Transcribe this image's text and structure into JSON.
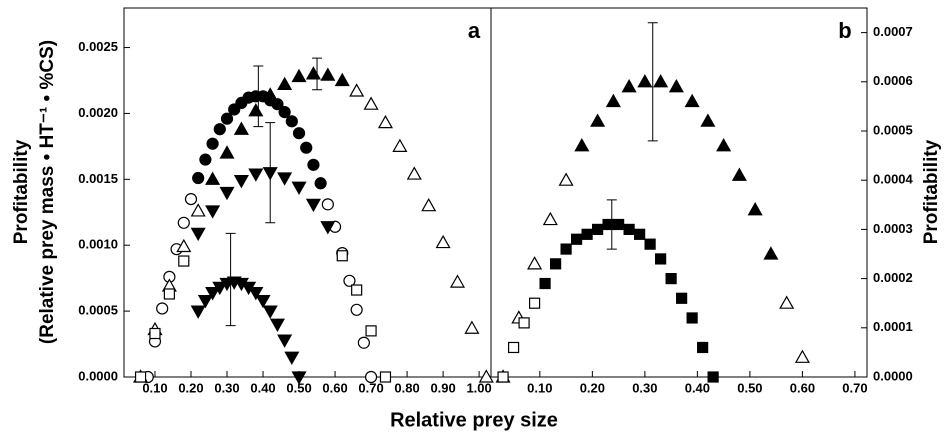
{
  "chart_data": [
    {
      "type": "scatter",
      "panel_label": "a",
      "ylabel": "Profitability",
      "ylabel_sub": "(Relative prey mass • HT⁻¹ • %CS)",
      "xlabel": "Relative prey size",
      "xlim": [
        0.014,
        1.033
      ],
      "ylim": [
        0,
        0.0028
      ],
      "y_side": "left",
      "xticks": [
        {
          "value": 0.1,
          "label": "0.10"
        },
        {
          "value": 0.2,
          "label": "0.20"
        },
        {
          "value": 0.3,
          "label": "0.30"
        },
        {
          "value": 0.4,
          "label": "0.40"
        },
        {
          "value": 0.5,
          "label": "0.50"
        },
        {
          "value": 0.6,
          "label": "0.60"
        },
        {
          "value": 0.7,
          "label": "0.70"
        },
        {
          "value": 0.8,
          "label": "0.80"
        },
        {
          "value": 0.9,
          "label": "0.90"
        },
        {
          "value": 1,
          "label": "1.00"
        }
      ],
      "yticks": [
        {
          "value": 0,
          "label": "0.0000"
        },
        {
          "value": 0.0005,
          "label": "0.0005"
        },
        {
          "value": 0.001,
          "label": "0.0010"
        },
        {
          "value": 0.0015,
          "label": "0.0015"
        },
        {
          "value": 0.002,
          "label": "0.0020"
        },
        {
          "value": 0.0025,
          "label": "0.0025"
        }
      ],
      "series": [
        {
          "marker": "circle",
          "filled": false,
          "color": "#000000",
          "x": [
            0.08,
            0.1,
            0.12,
            0.14,
            0.16,
            0.18,
            0.2
          ],
          "values": [
            0,
            0.00027,
            0.00052,
            0.00076,
            0.00097,
            0.00117,
            0.00135
          ]
        },
        {
          "marker": "circle",
          "filled": false,
          "color": "#000000",
          "x": [
            0.58,
            0.6,
            0.62,
            0.64,
            0.66,
            0.68,
            0.7
          ],
          "values": [
            0.00131,
            0.00114,
            0.00094,
            0.00073,
            0.00051,
            0.00026,
            0
          ]
        },
        {
          "marker": "triangle-up",
          "filled": false,
          "color": "#000000",
          "x": [
            0.06,
            0.1,
            0.14,
            0.18,
            0.22
          ],
          "values": [
            0,
            0.00036,
            0.00069,
            0.00099,
            0.00126
          ]
        },
        {
          "marker": "triangle-up",
          "filled": false,
          "color": "#000000",
          "x": [
            0.66,
            0.7,
            0.74,
            0.78,
            0.82,
            0.86,
            0.9,
            0.94,
            0.98,
            1.02
          ],
          "values": [
            0.00217,
            0.00207,
            0.00193,
            0.00175,
            0.00154,
            0.0013,
            0.00102,
            0.00072,
            0.00037,
            0
          ]
        },
        {
          "marker": "square",
          "filled": false,
          "color": "#000000",
          "x": [
            0.06,
            0.1,
            0.14,
            0.18
          ],
          "values": [
            0,
            0.00033,
            0.00063,
            0.00088
          ]
        },
        {
          "marker": "square",
          "filled": false,
          "color": "#000000",
          "x": [
            0.62,
            0.66,
            0.7,
            0.74
          ],
          "values": [
            0.00092,
            0.00066,
            0.00035,
            0
          ]
        },
        {
          "marker": "circle",
          "filled": true,
          "color": "#000000",
          "x": [
            0.22,
            0.24,
            0.26,
            0.28,
            0.3,
            0.32,
            0.34,
            0.36,
            0.38,
            0.4,
            0.42,
            0.44,
            0.46,
            0.48,
            0.5,
            0.52,
            0.54,
            0.56
          ],
          "values": [
            0.00151,
            0.00165,
            0.00177,
            0.00188,
            0.00196,
            0.00203,
            0.00208,
            0.00212,
            0.00213,
            0.00213,
            0.0021,
            0.00207,
            0.00201,
            0.00194,
            0.00185,
            0.00174,
            0.00161,
            0.00147
          ]
        },
        {
          "marker": "triangle-up",
          "filled": true,
          "color": "#000000",
          "x": [
            0.26,
            0.3,
            0.34,
            0.38,
            0.42,
            0.46,
            0.5,
            0.54,
            0.58,
            0.62
          ],
          "values": [
            0.0015,
            0.0017,
            0.00188,
            0.00202,
            0.00214,
            0.00222,
            0.00228,
            0.0023,
            0.00229,
            0.00225
          ]
        },
        {
          "marker": "triangle-down",
          "filled": true,
          "color": "#000000",
          "x": [
            0.22,
            0.26,
            0.3,
            0.34,
            0.38,
            0.42,
            0.46,
            0.5,
            0.54,
            0.58
          ],
          "values": [
            0.00109,
            0.00126,
            0.0014,
            0.00149,
            0.00154,
            0.00155,
            0.00151,
            0.00144,
            0.00131,
            0.00114
          ]
        },
        {
          "marker": "triangle-down",
          "filled": true,
          "color": "#000000",
          "x": [
            0.22,
            0.24,
            0.26,
            0.28,
            0.3,
            0.32,
            0.34,
            0.36,
            0.38,
            0.4,
            0.42,
            0.44,
            0.46,
            0.48,
            0.5
          ],
          "values": [
            0.0005,
            0.00058,
            0.00064,
            0.00068,
            0.00071,
            0.00072,
            0.00071,
            0.00068,
            0.00064,
            0.00058,
            0.0005,
            0.0004,
            0.00028,
            0.00015,
            0
          ]
        }
      ],
      "error_bars": [
        {
          "x": 0.387,
          "y": 0.00213,
          "err": 0.00023
        },
        {
          "x": 0.55,
          "y": 0.0023,
          "err": 0.00012
        },
        {
          "x": 0.42,
          "y": 0.00155,
          "err": 0.00038
        },
        {
          "x": 0.31,
          "y": 0.00074,
          "err": 0.00035
        }
      ]
    },
    {
      "type": "scatter",
      "panel_label": "b",
      "ylabel": "Profitability",
      "xlim": [
        0.007,
        0.723
      ],
      "ylim": [
        0,
        0.00075
      ],
      "y_side": "right",
      "xticks": [
        {
          "value": 0.1,
          "label": "0.10"
        },
        {
          "value": 0.2,
          "label": "0.20"
        },
        {
          "value": 0.3,
          "label": "0.30"
        },
        {
          "value": 0.4,
          "label": "0.40"
        },
        {
          "value": 0.5,
          "label": "0.50"
        },
        {
          "value": 0.6,
          "label": "0.60"
        },
        {
          "value": 0.7,
          "label": "0.70"
        }
      ],
      "yticks": [
        {
          "value": 0,
          "label": "0.0000"
        },
        {
          "value": 0.0001,
          "label": "0.0001"
        },
        {
          "value": 0.0002,
          "label": "0.0002"
        },
        {
          "value": 0.0003,
          "label": "0.0003"
        },
        {
          "value": 0.0004,
          "label": "0.0004"
        },
        {
          "value": 0.0005,
          "label": "0.0005"
        },
        {
          "value": 0.0006,
          "label": "0.0006"
        },
        {
          "value": 0.0007,
          "label": "0.0007"
        }
      ],
      "series": [
        {
          "marker": "triangle-up",
          "filled": false,
          "color": "#000000",
          "x": [
            0.03,
            0.06,
            0.09,
            0.12,
            0.15
          ],
          "values": [
            0,
            0.00012,
            0.00023,
            0.00032,
            0.0004
          ]
        },
        {
          "marker": "triangle-up",
          "filled": false,
          "color": "#000000",
          "x": [
            0.57,
            0.6
          ],
          "values": [
            0.00015,
            4e-05
          ]
        },
        {
          "marker": "square",
          "filled": false,
          "color": "#000000",
          "x": [
            0.03,
            0.05,
            0.07,
            0.09
          ],
          "values": [
            0,
            6e-05,
            0.00011,
            0.00015
          ]
        },
        {
          "marker": "triangle-up",
          "filled": true,
          "color": "#000000",
          "x": [
            0.18,
            0.21,
            0.24,
            0.27,
            0.3,
            0.33,
            0.36,
            0.39,
            0.42,
            0.45,
            0.48,
            0.51,
            0.54
          ],
          "values": [
            0.00047,
            0.00052,
            0.00056,
            0.00059,
            0.0006,
            0.0006,
            0.00059,
            0.00056,
            0.00052,
            0.00047,
            0.00041,
            0.00034,
            0.00025
          ]
        },
        {
          "marker": "square",
          "filled": true,
          "color": "#000000",
          "x": [
            0.11,
            0.13,
            0.15,
            0.17,
            0.19,
            0.21,
            0.23,
            0.25,
            0.27,
            0.29,
            0.31,
            0.33,
            0.35,
            0.37,
            0.39,
            0.41,
            0.43
          ],
          "values": [
            0.00019,
            0.00023,
            0.00026,
            0.00028,
            0.00029,
            0.0003,
            0.00031,
            0.00031,
            0.0003,
            0.00029,
            0.00027,
            0.00024,
            0.0002,
            0.00016,
            0.00012,
            6e-05,
            0
          ]
        }
      ],
      "error_bars": [
        {
          "x": 0.315,
          "y": 0.0006,
          "err": 0.00012
        },
        {
          "x": 0.237,
          "y": 0.00031,
          "err": 5e-05
        }
      ]
    }
  ]
}
